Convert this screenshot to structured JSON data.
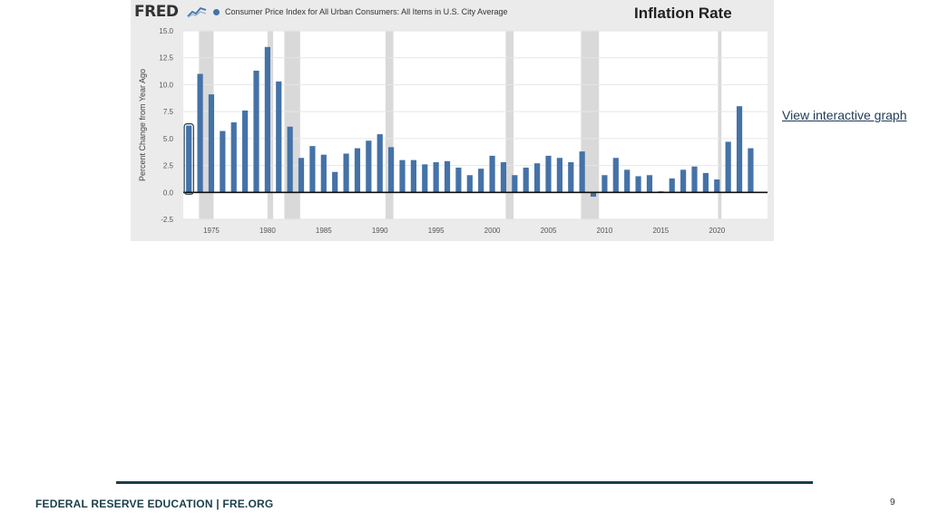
{
  "slide": {
    "title": "Inflation Rate",
    "link_label": "View interactive graph",
    "footer": "FEDERAL RESERVE EDUCATION  |  FRE.ORG",
    "page_number": "9"
  },
  "fred": {
    "logo_text": "FRED",
    "logo_icon": "line-chart-icon"
  },
  "colors": {
    "bar": "#4572a7",
    "recession": "#d9d9d9",
    "plot_bg": "#ffffff",
    "panel_bg": "#ebebeb",
    "footer_accent": "#1b3e4a"
  },
  "chart_data": {
    "type": "bar",
    "ylabel": "Percent Change from Year Ago",
    "ylim": [
      -2.5,
      15.0
    ],
    "yticks": [
      15.0,
      12.5,
      10.0,
      7.5,
      5.0,
      2.5,
      0.0,
      -2.5
    ],
    "ytick_labels": [
      "15.0",
      "12.5",
      "10.0",
      "7.5",
      "5.0",
      "2.5",
      "0.0",
      "-2.5"
    ],
    "xlim": [
      1972.5,
      2024.5
    ],
    "xticks": [
      1975,
      1980,
      1985,
      1990,
      1995,
      2000,
      2005,
      2010,
      2015,
      2020
    ],
    "xtick_labels": [
      "1975",
      "1980",
      "1985",
      "1990",
      "1995",
      "2000",
      "2005",
      "2010",
      "2015",
      "2020"
    ],
    "grid": true,
    "series": [
      {
        "name": "Consumer Price Index for All Urban Consumers: All Items in U.S. City Average",
        "x": [
          1973,
          1974,
          1975,
          1976,
          1977,
          1978,
          1979,
          1980,
          1981,
          1982,
          1983,
          1984,
          1985,
          1986,
          1987,
          1988,
          1989,
          1990,
          1991,
          1992,
          1993,
          1994,
          1995,
          1996,
          1997,
          1998,
          1999,
          2000,
          2001,
          2002,
          2003,
          2004,
          2005,
          2006,
          2007,
          2008,
          2009,
          2010,
          2011,
          2012,
          2013,
          2014,
          2015,
          2016,
          2017,
          2018,
          2019,
          2020,
          2021,
          2022,
          2023
        ],
        "values": [
          6.2,
          11.0,
          9.1,
          5.7,
          6.5,
          7.6,
          11.3,
          13.5,
          10.3,
          6.1,
          3.2,
          4.3,
          3.5,
          1.9,
          3.6,
          4.1,
          4.8,
          5.4,
          4.2,
          3.0,
          3.0,
          2.6,
          2.8,
          2.9,
          2.3,
          1.6,
          2.2,
          3.4,
          2.8,
          1.6,
          2.3,
          2.7,
          3.4,
          3.2,
          2.8,
          3.8,
          -0.4,
          1.6,
          3.2,
          2.1,
          1.5,
          1.6,
          0.1,
          1.3,
          2.1,
          2.4,
          1.8,
          1.2,
          4.7,
          8.0,
          4.1
        ]
      }
    ],
    "highlighted_x": 1973,
    "recession_periods": [
      [
        1973.9,
        1975.2
      ],
      [
        1980.0,
        1980.5
      ],
      [
        1981.5,
        1982.9
      ],
      [
        1990.5,
        1991.2
      ],
      [
        2001.2,
        2001.9
      ],
      [
        2007.9,
        2009.5
      ],
      [
        2020.1,
        2020.4
      ]
    ]
  }
}
